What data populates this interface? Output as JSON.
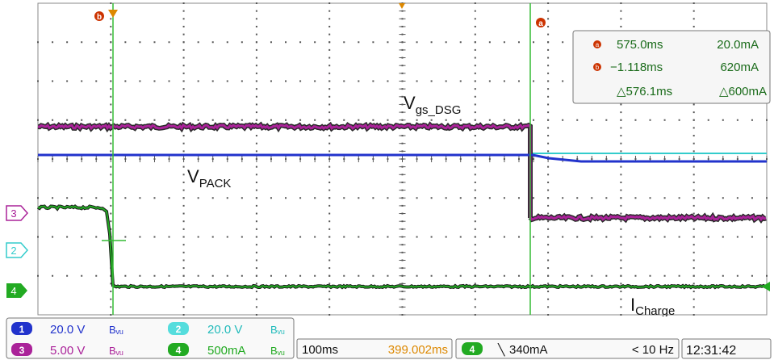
{
  "waveform_labels": {
    "vgs": {
      "main": "V",
      "sub": "gs_DSG"
    },
    "vpack": {
      "main": "V",
      "sub": "PACK"
    },
    "icharge": {
      "main": "I",
      "sub": "Charge"
    }
  },
  "channel_markers": {
    "ch3": "3",
    "ch2": "2",
    "ch4": "4"
  },
  "cursor_markers": {
    "a": "a",
    "b": "b"
  },
  "cursor_readout": {
    "a": {
      "time": "575.0ms",
      "value": "20.0mA"
    },
    "b": {
      "time": "−1.118ms",
      "value": "620mA"
    },
    "delta": {
      "time": "△576.1ms",
      "value": "△600mA"
    }
  },
  "channels": [
    {
      "num": "1",
      "scale": "20.0 V",
      "bw": "Bᵥᵤ",
      "color": "#2233cc"
    },
    {
      "num": "2",
      "scale": "20.0 V",
      "bw": "Bᵥᵤ",
      "color": "#33cccc"
    },
    {
      "num": "3",
      "scale": "5.00 V",
      "bw": "Bᵥᵤ",
      "color": "#aa2299"
    },
    {
      "num": "4",
      "scale": "500mA",
      "bw": "Bᵥᵤ",
      "color": "#22aa22"
    }
  ],
  "bw_label": "Bᵥᵤ",
  "timebase": {
    "scale": "100ms",
    "position": "399.002ms"
  },
  "trigger": {
    "channel": "4",
    "slope": "╲",
    "level": "340mA",
    "rate": "< 10 Hz"
  },
  "clock": "12:31:42",
  "colors": {
    "ch1": "#2233cc",
    "ch2": "#33cccc",
    "ch3": "#aa2299",
    "ch4": "#22aa22",
    "cursor": "#cc3300",
    "trigger_pos": "#dd8800",
    "vcursor": "#33bb33"
  }
}
